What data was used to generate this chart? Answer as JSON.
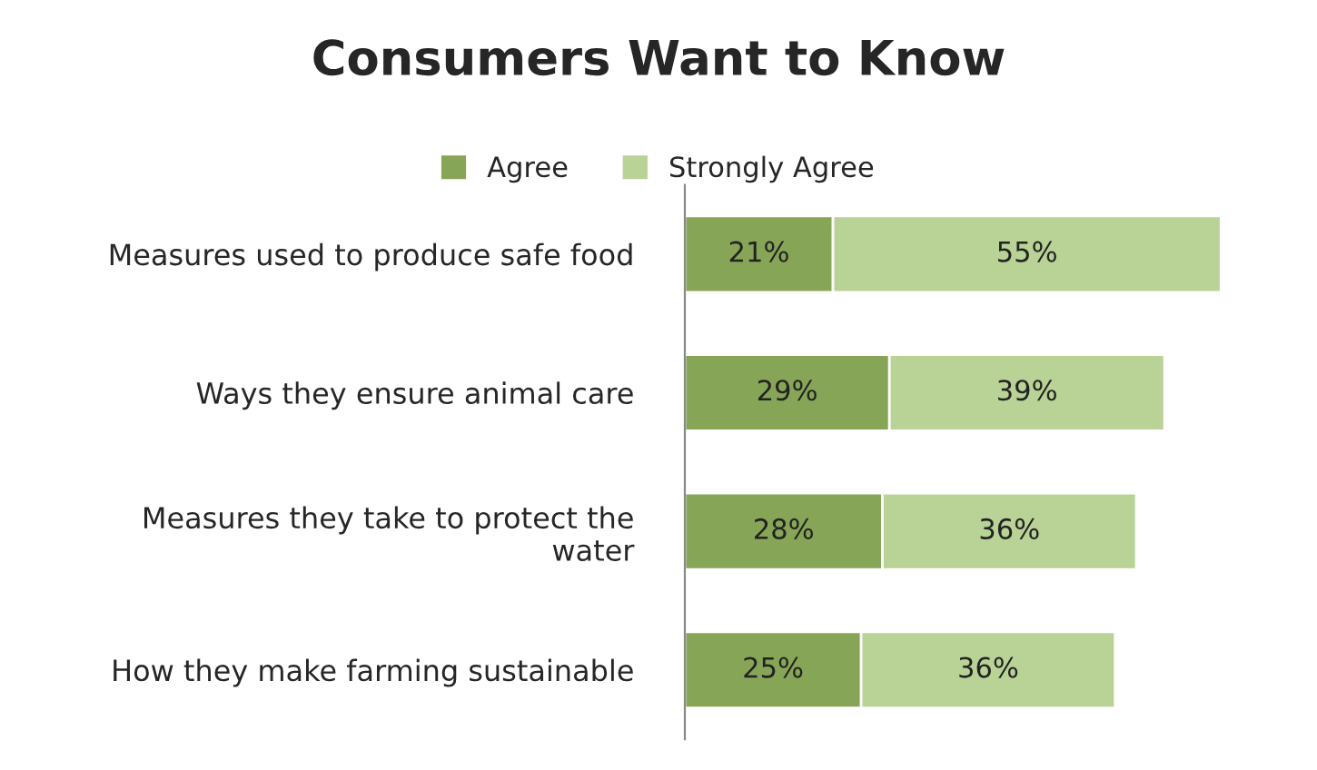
{
  "chart_data": {
    "type": "bar",
    "orientation": "horizontal",
    "stacked": true,
    "title": "Consumers Want to Know",
    "categories": [
      "Measures used to produce safe food",
      "Ways they ensure animal care",
      "Measures they take to protect the\nwater",
      "How they make farming sustainable"
    ],
    "series": [
      {
        "name": "Agree",
        "color": "#87a556",
        "values": [
          21,
          29,
          28,
          25
        ],
        "value_labels": [
          "21%",
          "29%",
          "28%",
          "25%"
        ]
      },
      {
        "name": "Strongly Agree",
        "color": "#b9d296",
        "values": [
          55,
          39,
          36,
          36
        ],
        "value_labels": [
          "55%",
          "39%",
          "36%",
          "36%"
        ]
      }
    ],
    "legend": "top",
    "grid": false
  }
}
